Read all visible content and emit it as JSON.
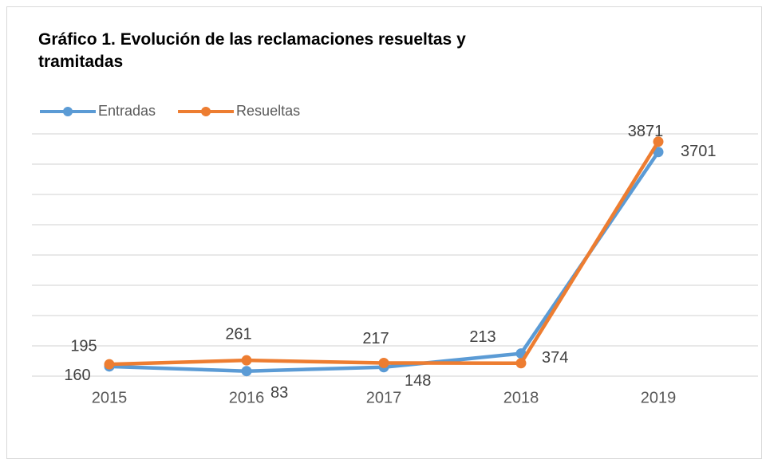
{
  "chart_data": {
    "type": "line",
    "title": "Gráfico 1. Evolución de las reclamaciones resueltas y tramitadas",
    "categories": [
      "2015",
      "2016",
      "2017",
      "2018",
      "2019"
    ],
    "series": [
      {
        "name": "Entradas",
        "color": "#5b9bd5",
        "values": [
          160,
          83,
          148,
          374,
          3701
        ]
      },
      {
        "name": "Resueltas",
        "color": "#ed7d31",
        "values": [
          195,
          261,
          217,
          213,
          3871
        ]
      }
    ],
    "ylim": [
      0,
      4000
    ],
    "yticks": [
      0,
      500,
      1000,
      1500,
      2000,
      2500,
      3000,
      3500,
      4000
    ],
    "grid": true,
    "legend": "top-left"
  }
}
